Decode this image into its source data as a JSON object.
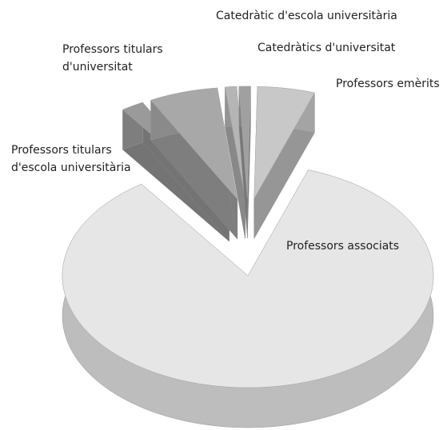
{
  "chart_data": {
    "type": "pie3d",
    "categories": [
      "Professors titulars d'escola universitària",
      "Professors titulars d'universitat",
      "Catedràtic d'escola universitària",
      "Catedràtics d'universitat",
      "Professors emèrits",
      "Professors associats"
    ],
    "values": [
      2,
      6,
      1,
      1,
      5,
      85
    ],
    "colors": [
      "#9a9a9a",
      "#a8a8a8",
      "#b5b5b5",
      "#a0a0a0",
      "#c8c8c8",
      "#e6e6e6"
    ]
  }
}
